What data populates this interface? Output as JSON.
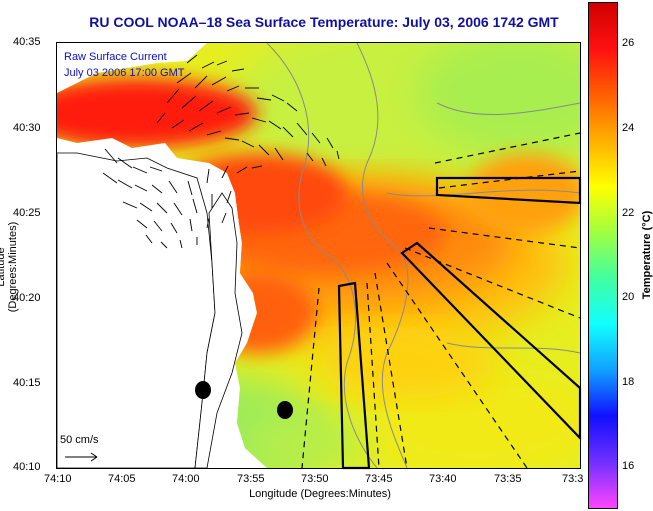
{
  "map": {
    "title": "RU COOL  NOAA–18  Sea Surface Temperature:  July 03, 2006 1742 GMT",
    "y_axis_label": "Latitude (Degrees:Minutes)",
    "x_axis_label": "Longitude (Degrees:Minutes)",
    "y_ticks": [
      "40:35",
      "40:30",
      "40:25",
      "40:20",
      "40:15",
      "40:10"
    ],
    "x_ticks": [
      "74:10",
      "74:05",
      "74:00",
      "73:55",
      "73:50",
      "73:45",
      "73:40",
      "73:35",
      "73:3"
    ],
    "legend_line1": "Raw Surface Current",
    "legend_line2": "July 03 2006 17:00 GMT",
    "scale_label": "50 cm/s"
  },
  "colorbar": {
    "label": "Temperature (°C)",
    "ticks": [
      "26",
      "24",
      "22",
      "20",
      "18",
      "16"
    ],
    "range": [
      15.3,
      27.2
    ],
    "colors": [
      "#ff44ff",
      "#7030ff",
      "#1010ff",
      "#10a0ff",
      "#10ffff",
      "#40ffa0",
      "#a0ff40",
      "#ffff00",
      "#ffb000",
      "#ff6000",
      "#ff1010",
      "#d00000"
    ]
  }
}
